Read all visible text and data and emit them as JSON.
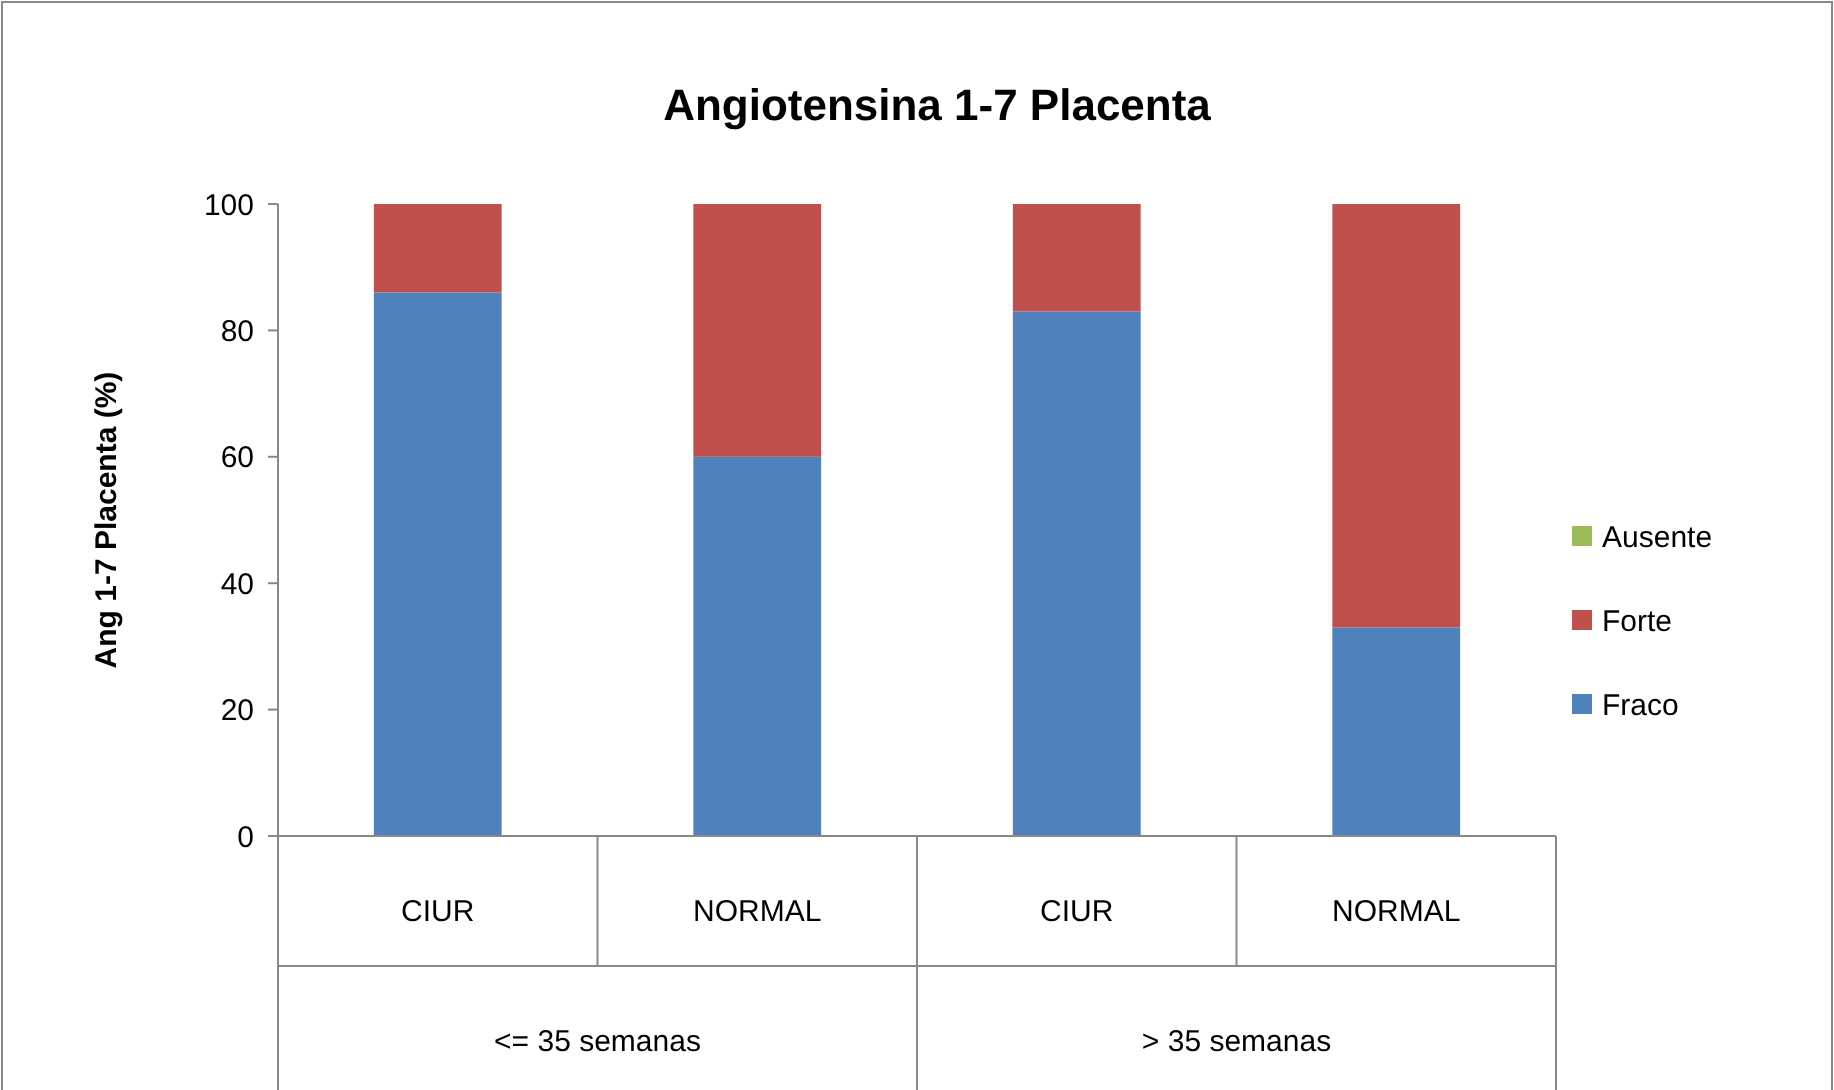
{
  "chart_data": {
    "type": "bar",
    "title": "Angiotensina 1-7 Placenta",
    "ylabel": "Ang 1-7 Placenta (%)",
    "categories": [
      "CIUR",
      "NORMAL",
      "CIUR",
      "NORMAL"
    ],
    "annotations": [
      "<= 35 semanas",
      "> 35 semanas"
    ],
    "stacked": true,
    "series": [
      {
        "name": "Fraco",
        "color": "#4f81bd",
        "values": [
          86,
          60,
          83,
          33
        ]
      },
      {
        "name": "Forte",
        "color": "#c0504d",
        "values": [
          14,
          40,
          17,
          67
        ]
      },
      {
        "name": "Ausente",
        "color": "#9bbb59",
        "values": [
          0,
          0,
          0,
          0
        ]
      }
    ],
    "ylim": [
      0,
      100
    ],
    "yticks": [
      0,
      20,
      40,
      60,
      80,
      100
    ],
    "grid": false,
    "legend": "right"
  }
}
